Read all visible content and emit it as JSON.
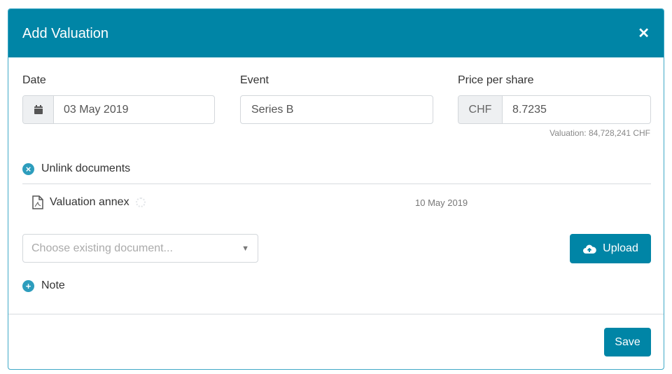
{
  "modal": {
    "title": "Add Valuation",
    "close_icon": "close-icon",
    "accent_color": "#0085a6",
    "date": {
      "label": "Date",
      "value": "03 May 2019",
      "icon": "calendar-icon"
    },
    "event": {
      "label": "Event",
      "value": "Series B"
    },
    "price": {
      "label": "Price per share",
      "currency": "CHF",
      "value": "8.7235",
      "valuation": "Valuation: 84,728,241 CHF"
    },
    "unlink_label": "Unlink documents",
    "documents": [
      {
        "name": "Valuation annex",
        "date": "10 May 2019",
        "icon": "pdf-file-icon"
      }
    ],
    "choose_placeholder": "Choose existing document...",
    "upload_label": "Upload",
    "note_label": "Note",
    "save_label": "Save"
  }
}
